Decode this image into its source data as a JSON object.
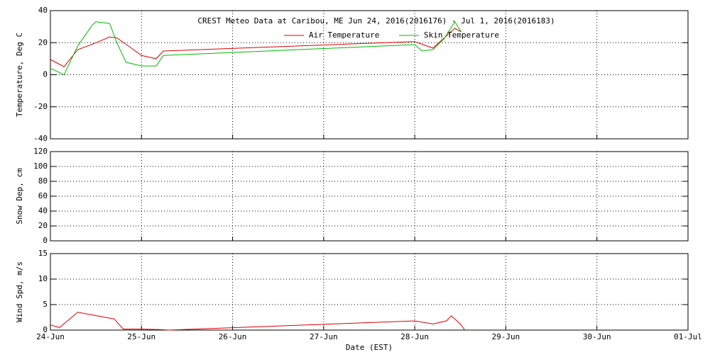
{
  "chart_data": [
    {
      "type": "line",
      "title": "CREST Meteo Data at Caribou, ME   Jun 24, 2016(2016176) - Jul  1, 2016(2016183)",
      "ylabel": "Temperature, Deg C",
      "x": [
        0,
        0.15,
        0.3,
        0.46,
        0.5,
        0.65,
        0.73,
        0.83,
        1.0,
        1.16,
        1.24,
        4.0,
        4.08,
        4.2,
        4.32,
        4.44,
        4.51
      ],
      "series": [
        {
          "name": "Air Temperature",
          "color": "#dd0000",
          "values": [
            9.5,
            5,
            15.7,
            19,
            20,
            23.5,
            23,
            19,
            12,
            10,
            14.8,
            20.7,
            19,
            16.6,
            22.8,
            29,
            26.7
          ]
        },
        {
          "name": "Skin Temperature",
          "color": "#00bb00",
          "values": [
            4,
            0,
            18,
            31,
            33,
            32,
            20,
            7.8,
            5.5,
            5.5,
            12,
            18.8,
            14.8,
            15.7,
            22.3,
            33,
            26.7
          ]
        }
      ],
      "xlim": [
        0,
        7
      ],
      "xticks": [
        0,
        1,
        2,
        3,
        4,
        5,
        6,
        7
      ],
      "ylim": [
        -40,
        40
      ],
      "yticks": [
        -40,
        -20,
        0,
        20,
        40
      ],
      "grid": true
    },
    {
      "type": "line",
      "ylabel": "Snow Dep, cm",
      "xlim": [
        0,
        7
      ],
      "xticks": [
        0,
        1,
        2,
        3,
        4,
        5,
        6,
        7
      ],
      "ylim": [
        0,
        120
      ],
      "yticks": [
        0,
        20,
        40,
        60,
        80,
        100,
        120
      ],
      "grid": true
    },
    {
      "type": "line",
      "ylabel": "Wind Spd, m/s",
      "xlabel": "Date (EST)",
      "x": [
        0,
        0.1,
        0.2,
        0.3,
        0.45,
        0.6,
        0.7,
        0.8,
        1.0,
        1.2,
        1.3,
        4.0,
        4.2,
        4.35,
        4.4,
        4.5,
        4.55
      ],
      "series": [
        {
          "name": "Wind Speed",
          "color": "#dd0000",
          "values": [
            1,
            0.5,
            2,
            3.5,
            3,
            2.5,
            2.2,
            0.2,
            0.2,
            0.1,
            0,
            1.8,
            1.2,
            1.8,
            2.8,
            1.2,
            0
          ]
        }
      ],
      "xlim": [
        0,
        7
      ],
      "xticks": [
        {
          "value": 0,
          "label": "24-Jun"
        },
        {
          "value": 1,
          "label": "25-Jun"
        },
        {
          "value": 2,
          "label": "26-Jun"
        },
        {
          "value": 3,
          "label": "27-Jun"
        },
        {
          "value": 4,
          "label": "28-Jun"
        },
        {
          "value": 5,
          "label": "29-Jun"
        },
        {
          "value": 6,
          "label": "30-Jun"
        },
        {
          "value": 7,
          "label": "01-Jul"
        }
      ],
      "ylim": [
        0,
        15
      ],
      "yticks": [
        0,
        5,
        10,
        15
      ],
      "grid": true
    }
  ]
}
